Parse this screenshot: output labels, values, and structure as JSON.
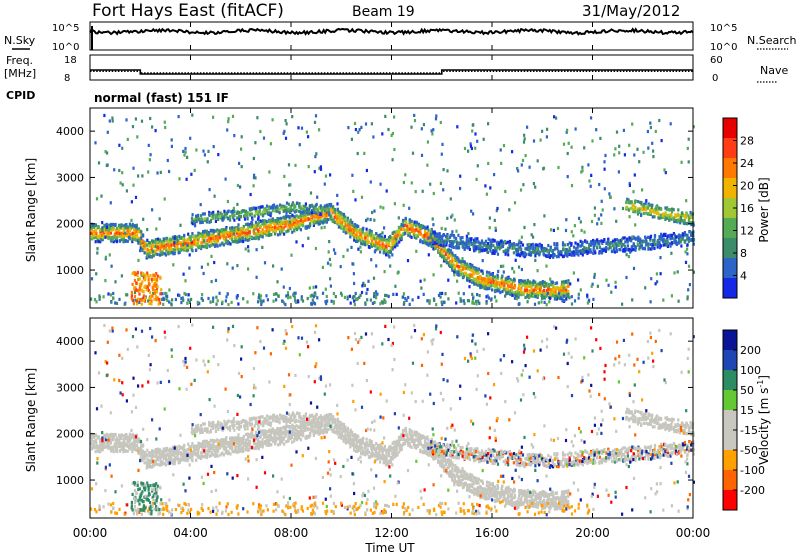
{
  "header": {
    "station": "Fort Hays East (fitACF)",
    "beam": "Beam 19",
    "date": "31/May/2012"
  },
  "top_panels": {
    "nsky_label": "N.Sky",
    "nsearch_label": "N.Search",
    "freq_label_line1": "Freq.",
    "freq_label_line2": "[MHz]",
    "nave_label": "Nave",
    "cpid_label": "CPID",
    "cpid_text": "normal (fast) 151 IF",
    "noise_ticks": [
      "10^5",
      "10^0"
    ],
    "noise_right_ticks": [
      "10^5",
      "10^0"
    ],
    "freq_ticks": [
      "18",
      "8"
    ],
    "nave_ticks": [
      "60",
      "0"
    ]
  },
  "colors": {
    "power_scale": [
      "#1428e6",
      "#2c64c8",
      "#3c8c6c",
      "#55aa55",
      "#a0c832",
      "#f0b400",
      "#ff7800",
      "#ff3c14",
      "#e60000"
    ],
    "velocity_scale": [
      "#ff0000",
      "#ff6400",
      "#ffa000",
      "#c8c8c0",
      "#c8c8c0",
      "#64c832",
      "#2c8c64",
      "#1e46b4",
      "#0a1496"
    ],
    "gray": "#c6c6be"
  },
  "chart_data": [
    {
      "type": "heatmap",
      "name": "power-panel",
      "ylabel": "Slant Range [km]",
      "xlabel": "",
      "ylim": [
        180,
        4500
      ],
      "xlim": [
        0,
        24
      ],
      "yticks": [
        "4000",
        "3000",
        "2000",
        "1000"
      ],
      "ytick_values": [
        4000,
        3000,
        2000,
        1000
      ],
      "colorbar_label": "Power [dB]",
      "colorbar_ticks": [
        "28",
        "24",
        "20",
        "16",
        "12",
        "8",
        "4"
      ],
      "colorbar_range": [
        0,
        32
      ]
    },
    {
      "type": "heatmap",
      "name": "velocity-panel",
      "ylabel": "Slant Range [km]",
      "xlabel": "Time UT",
      "ylim": [
        180,
        4500
      ],
      "xlim": [
        0,
        24
      ],
      "yticks": [
        "4000",
        "3000",
        "2000",
        "1000"
      ],
      "ytick_values": [
        4000,
        3000,
        2000,
        1000
      ],
      "xticks": [
        "00:00",
        "04:00",
        "08:00",
        "12:00",
        "16:00",
        "20:00",
        "00:00"
      ],
      "xtick_values": [
        0,
        4,
        8,
        12,
        16,
        20,
        24
      ],
      "colorbar_label": "Velocity [m s",
      "colorbar_label_sup": "-1",
      "colorbar_label_end": "]",
      "colorbar_ticks": [
        "200",
        "100",
        "50",
        "15",
        "-15",
        "-50",
        "-100",
        "-200"
      ]
    },
    {
      "type": "line",
      "name": "frequency-nave",
      "series": [
        {
          "name": "Freq.",
          "x": [
            0,
            2.0,
            2.0,
            14.0,
            14.0,
            24
          ],
          "y": [
            12,
            12,
            10,
            10,
            12,
            12
          ]
        },
        {
          "name": "Nave",
          "x": [
            0,
            2.0,
            2.0,
            14.0,
            14.0,
            24
          ],
          "y": [
            20,
            20,
            15,
            15,
            20,
            20
          ]
        }
      ]
    }
  ]
}
